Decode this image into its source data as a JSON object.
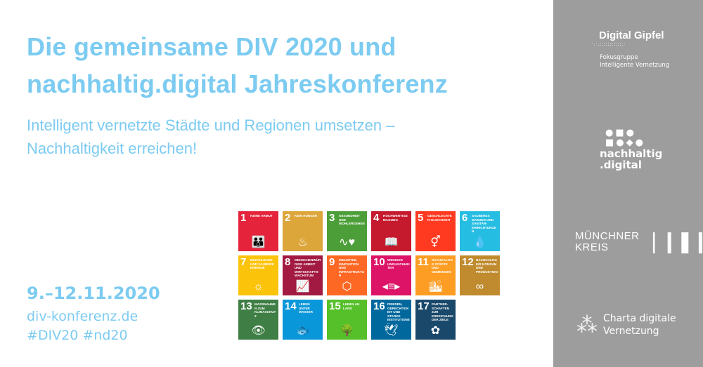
{
  "headline": {
    "line1": "Die gemeinsame DIV 2020 und",
    "line2": "nachhaltig.digital Jahreskonferenz"
  },
  "subtitle": {
    "line1": "Intelligent vernetzte Städte und Regionen umsetzen –",
    "line2": "Nachhaltigkeit erreichen!"
  },
  "event": {
    "date": "9.–12.11.2020",
    "website": "div-konferenz.de",
    "hashtags": "#DIV20 #nd20"
  },
  "colors": {
    "text_accent": "#7ccbf1",
    "sidebar": "#9d9d9d"
  },
  "sdgs": [
    {
      "n": "1",
      "label": "Keine Armut",
      "color": "#e5243b",
      "icon": "family-icon",
      "glyph": "👪"
    },
    {
      "n": "2",
      "label": "Kein Hunger",
      "color": "#dda63a",
      "icon": "bowl-icon",
      "glyph": "♨"
    },
    {
      "n": "3",
      "label": "Gesundheit und Wohlergehen",
      "color": "#4c9f38",
      "icon": "heartbeat-icon",
      "glyph": "∿♥"
    },
    {
      "n": "4",
      "label": "Hochwertige Bildung",
      "color": "#c5192d",
      "icon": "book-icon",
      "glyph": "📖"
    },
    {
      "n": "5",
      "label": "Geschlechter-gleichheit",
      "color": "#ff3a21",
      "icon": "gender-equality-icon",
      "glyph": "⚥"
    },
    {
      "n": "6",
      "label": "Sauberes Wasser und Sanitär-einrichtungen",
      "color": "#26bde2",
      "icon": "water-icon",
      "glyph": "💧"
    },
    {
      "n": "7",
      "label": "Bezahlbare und saubere Energie",
      "color": "#fcc30b",
      "icon": "sun-icon",
      "glyph": "☼"
    },
    {
      "n": "8",
      "label": "Menschenwürdige Arbeit und Wirtschafts-wachstum",
      "color": "#a21942",
      "icon": "growth-chart-icon",
      "glyph": "📈"
    },
    {
      "n": "9",
      "label": "Industrie, Innovation und Infrastruktur",
      "color": "#fd6925",
      "icon": "cubes-icon",
      "glyph": "⬡"
    },
    {
      "n": "10",
      "label": "Weniger Ungleichheiten",
      "color": "#dd1367",
      "icon": "equal-arrows-icon",
      "glyph": "◂≡▸"
    },
    {
      "n": "11",
      "label": "Nachhaltige Städte und Gemeinden",
      "color": "#fd9d24",
      "icon": "city-icon",
      "glyph": "🏙"
    },
    {
      "n": "12",
      "label": "Nachhaltige/r Konsum und Produktion",
      "color": "#bf8b2e",
      "icon": "infinity-icon",
      "glyph": "∞"
    },
    {
      "n": "13",
      "label": "Maßnahmen zum Klimaschutz",
      "color": "#3f7e44",
      "icon": "eye-globe-icon",
      "glyph": "👁"
    },
    {
      "n": "14",
      "label": "Leben unter Wasser",
      "color": "#0a97d9",
      "icon": "fish-icon",
      "glyph": "🐟"
    },
    {
      "n": "15",
      "label": "Leben an Land",
      "color": "#56c02b",
      "icon": "tree-icon",
      "glyph": "🌳"
    },
    {
      "n": "16",
      "label": "Frieden, Gerechtigkeit und starke Institutionen",
      "color": "#00689d",
      "icon": "dove-icon",
      "glyph": "🕊"
    },
    {
      "n": "17",
      "label": "Partner-schaften zur Erreichung der Ziele",
      "color": "#19486a",
      "icon": "flower-rings-icon",
      "glyph": "✿"
    }
  ],
  "partners": {
    "digital_gipfel": {
      "name": "Digital Gipfel",
      "sub1": "Fokusgruppe",
      "sub2": "Intelligente Vernetzung"
    },
    "nachhaltig_digital": {
      "line1": "nachhaltig",
      "line2": ".digital"
    },
    "muenchner_kreis": {
      "line1": "MÜNCHNER",
      "line2": "KREIS"
    },
    "charta": {
      "line1": "Charta digitale",
      "line2": "Vernetzung"
    }
  }
}
